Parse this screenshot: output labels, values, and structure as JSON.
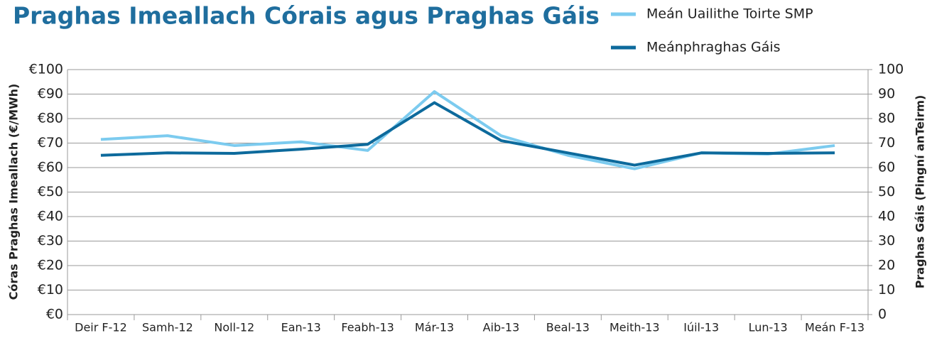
{
  "chart_data": {
    "type": "line",
    "title": "Praghas Imeallach Córais agus Praghas Gáis",
    "y_label": "Córas Praghas Imeallach (€/MWh)",
    "y2_label": "Praghas Gáis (Pingní anTeirm)",
    "categories": [
      "Deir F-12",
      "Samh-12",
      "Noll-12",
      "Ean-13",
      "Feabh-13",
      "Már-13",
      "Aib-13",
      "Beal-13",
      "Meith-13",
      "Iúil-13",
      "Lun-13",
      "Meán F-13"
    ],
    "series": [
      {
        "name": "Meán Uailithe Toirte SMP",
        "color": "#7ccbef",
        "values": [
          71.5,
          73,
          69,
          70.5,
          67,
          91,
          73,
          65,
          59.5,
          66,
          65.5,
          69
        ]
      },
      {
        "name": "Meánphraghas Gáis",
        "color": "#0d6a9c",
        "axis": "y2",
        "values": [
          65,
          66,
          65.8,
          67.5,
          69.5,
          86.5,
          71,
          66,
          61,
          66,
          65.8,
          66
        ]
      }
    ],
    "ylim": [
      0,
      100
    ],
    "yticks": [
      {
        "value": 0,
        "label": "€0"
      },
      {
        "value": 10,
        "label": "€10"
      },
      {
        "value": 20,
        "label": "€20"
      },
      {
        "value": 30,
        "label": "€30"
      },
      {
        "value": 40,
        "label": "€40"
      },
      {
        "value": 50,
        "label": "€50"
      },
      {
        "value": 60,
        "label": "€60"
      },
      {
        "value": 70,
        "label": "€70"
      },
      {
        "value": 80,
        "label": "€80"
      },
      {
        "value": 90,
        "label": "€90"
      },
      {
        "value": 100,
        "label": "€100"
      }
    ],
    "y2lim": [
      0,
      100
    ],
    "y2ticks": [
      0,
      10,
      20,
      30,
      40,
      50,
      60,
      70,
      80,
      90,
      100
    ],
    "grid": true
  }
}
